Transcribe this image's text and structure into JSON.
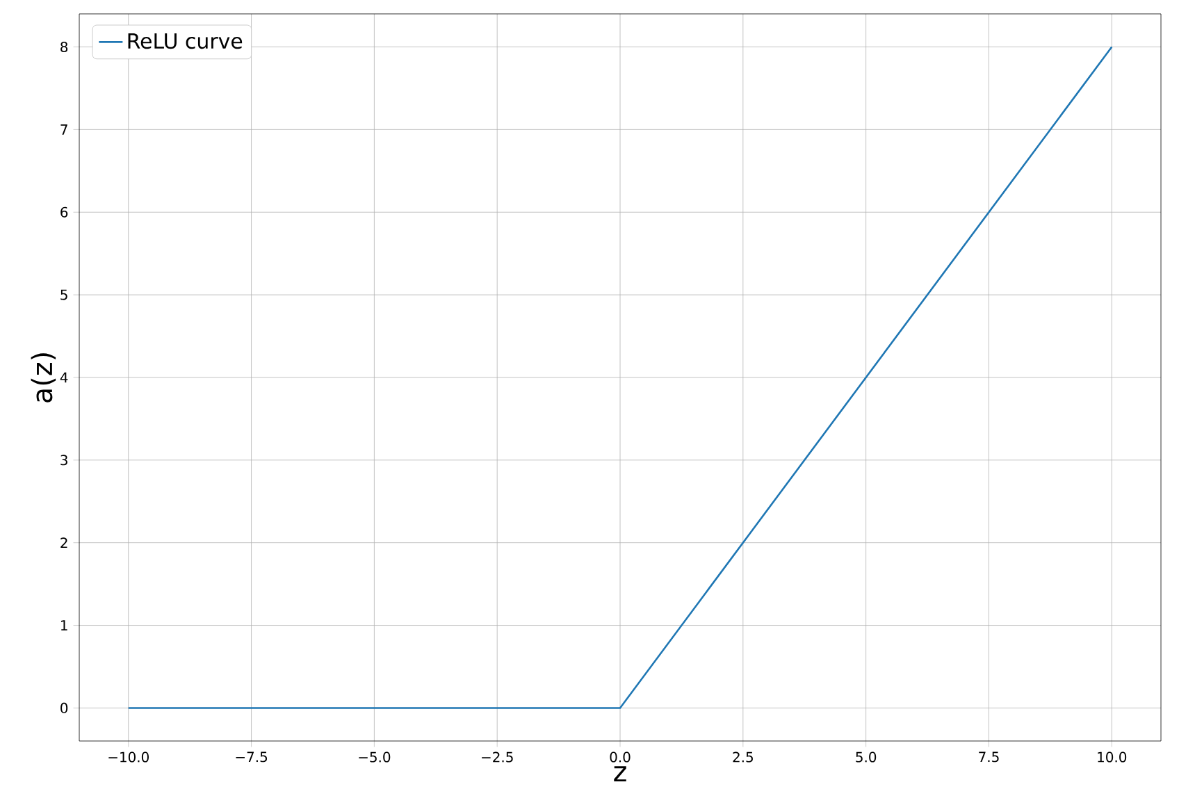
{
  "chart_data": {
    "type": "line",
    "xlabel": "z",
    "ylabel": "a(z)",
    "series": [
      {
        "name": "ReLU curve",
        "color": "#1f77b4",
        "x": [
          -10,
          0,
          10
        ],
        "values": [
          0,
          0,
          8
        ]
      }
    ],
    "xlim": [
      -11,
      11
    ],
    "ylim": [
      -0.4,
      8.4
    ],
    "xticks": [
      {
        "value": -10,
        "label": "−10.0"
      },
      {
        "value": -7.5,
        "label": "−7.5"
      },
      {
        "value": -5,
        "label": "−5.0"
      },
      {
        "value": -2.5,
        "label": "−2.5"
      },
      {
        "value": 0,
        "label": "0.0"
      },
      {
        "value": 2.5,
        "label": "2.5"
      },
      {
        "value": 5,
        "label": "5.0"
      },
      {
        "value": 7.5,
        "label": "7.5"
      },
      {
        "value": 10,
        "label": "10.0"
      }
    ],
    "yticks": [
      0,
      1,
      2,
      3,
      4,
      5,
      6,
      7,
      8
    ],
    "grid": true,
    "legend": "top left",
    "marker": "none",
    "line_style": "solid"
  }
}
